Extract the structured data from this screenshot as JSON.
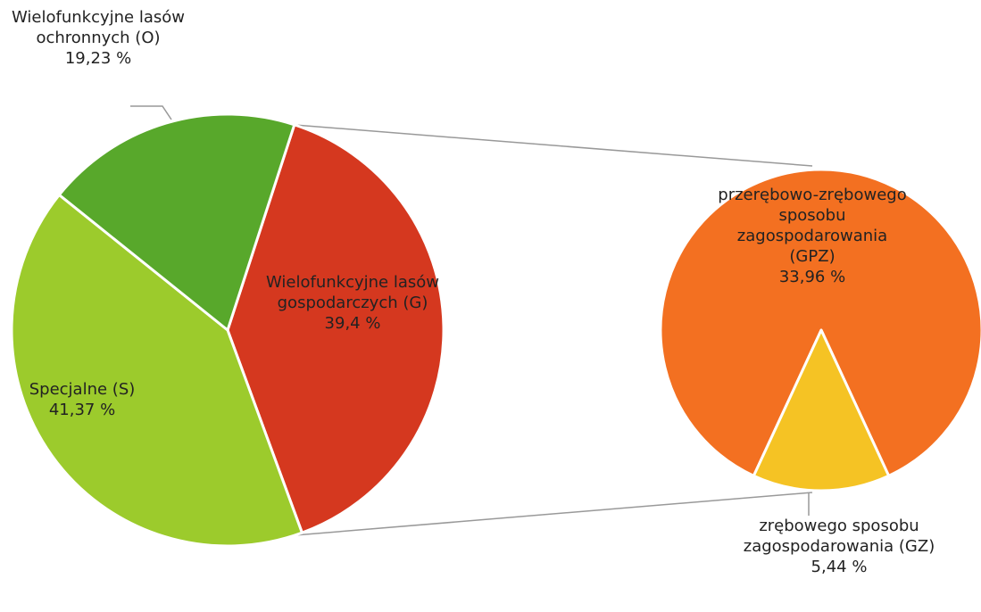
{
  "chart_data": {
    "type": "pie-of-pie",
    "categories": [
      "Wielofunkcyjne lasów gospodarczych (G)",
      "Specjalne (S)",
      "Wielofunkcyjne lasów ochronnych (O)"
    ],
    "values": [
      39.4,
      41.37,
      19.23
    ],
    "value_labels": [
      "39,4 %",
      "41,37 %",
      "19,23 %"
    ],
    "colors": [
      "#d5381f",
      "#9ccb2c",
      "#58a82b"
    ],
    "secondary": {
      "categories": [
        "przerębowo-zrębowego sposobu zagospodarowania (GPZ)",
        "zrębowego sposobu zagospodarowania (GZ)"
      ],
      "values": [
        33.96,
        5.44
      ],
      "value_labels": [
        "33,96 %",
        "5,44 %"
      ],
      "colors": [
        "#f37021",
        "#f5c324"
      ]
    }
  }
}
